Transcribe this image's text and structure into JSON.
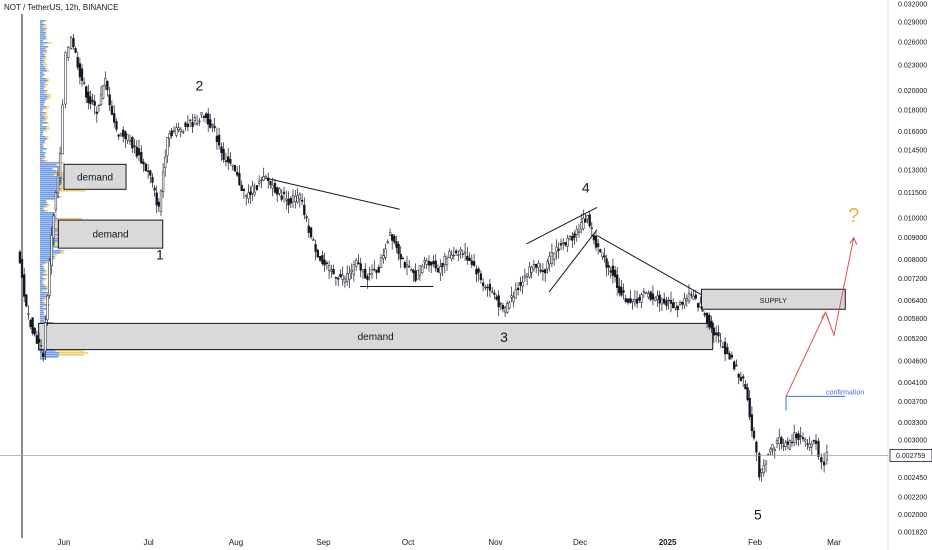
{
  "header": {
    "title": "NOT / TetherUS, 12h, BINANCE"
  },
  "chart_data": {
    "type": "candlestick",
    "symbol": "NOT / TetherUS",
    "interval": "12h",
    "exchange": "BINANCE",
    "y_scale": "log",
    "ylim": [
      0.00182,
      0.032
    ],
    "y_ticks": [
      {
        "v": 0.032,
        "label": "0.032000"
      },
      {
        "v": 0.029,
        "label": "0.029000"
      },
      {
        "v": 0.026,
        "label": "0.026000"
      },
      {
        "v": 0.023,
        "label": "0.023000"
      },
      {
        "v": 0.02,
        "label": "0.020000"
      },
      {
        "v": 0.018,
        "label": "0.018000"
      },
      {
        "v": 0.016,
        "label": "0.016000"
      },
      {
        "v": 0.0145,
        "label": "0.014500"
      },
      {
        "v": 0.013,
        "label": "0.013000"
      },
      {
        "v": 0.0115,
        "label": "0.011500"
      },
      {
        "v": 0.01,
        "label": "0.010000"
      },
      {
        "v": 0.009,
        "label": "0.009000"
      },
      {
        "v": 0.008,
        "label": "0.008000"
      },
      {
        "v": 0.0072,
        "label": "0.007200"
      },
      {
        "v": 0.0064,
        "label": "0.006400"
      },
      {
        "v": 0.0058,
        "label": "0.005800"
      },
      {
        "v": 0.0052,
        "label": "0.005200"
      },
      {
        "v": 0.0046,
        "label": "0.004600"
      },
      {
        "v": 0.0041,
        "label": "0.004100"
      },
      {
        "v": 0.0037,
        "label": "0.003700"
      },
      {
        "v": 0.0033,
        "label": "0.003300"
      },
      {
        "v": 0.003,
        "label": "0.003000"
      },
      {
        "v": 0.00245,
        "label": "0.002450"
      },
      {
        "v": 0.0022,
        "label": "0.002200"
      },
      {
        "v": 0.002,
        "label": "0.002000"
      },
      {
        "v": 0.00182,
        "label": "0.001820"
      }
    ],
    "x_ticks": [
      {
        "label": "Jun",
        "date": "2024-06-01",
        "bold": false
      },
      {
        "label": "Jul",
        "date": "2024-07-01",
        "bold": false
      },
      {
        "label": "Aug",
        "date": "2024-08-01",
        "bold": false
      },
      {
        "label": "Sep",
        "date": "2024-09-01",
        "bold": false
      },
      {
        "label": "Oct",
        "date": "2024-10-01",
        "bold": false
      },
      {
        "label": "Nov",
        "date": "2024-11-01",
        "bold": false
      },
      {
        "label": "Dec",
        "date": "2024-12-01",
        "bold": false
      },
      {
        "label": "2025",
        "date": "2025-01-01",
        "bold": true
      },
      {
        "label": "Feb",
        "date": "2025-02-01",
        "bold": false
      },
      {
        "label": "Mar",
        "date": "2025-03-01",
        "bold": false
      }
    ],
    "current_price": {
      "value": 0.002759,
      "label": "0.002759"
    },
    "price_path": [
      {
        "d": "2024-05-16",
        "p": 0.0085
      },
      {
        "d": "2024-05-19",
        "p": 0.0061
      },
      {
        "d": "2024-05-22",
        "p": 0.0053
      },
      {
        "d": "2024-05-25",
        "p": 0.0048
      },
      {
        "d": "2024-05-28",
        "p": 0.0092
      },
      {
        "d": "2024-05-31",
        "p": 0.014
      },
      {
        "d": "2024-06-02",
        "p": 0.024
      },
      {
        "d": "2024-06-04",
        "p": 0.027
      },
      {
        "d": "2024-06-07",
        "p": 0.022
      },
      {
        "d": "2024-06-10",
        "p": 0.019
      },
      {
        "d": "2024-06-13",
        "p": 0.018
      },
      {
        "d": "2024-06-16",
        "p": 0.021
      },
      {
        "d": "2024-06-20",
        "p": 0.016
      },
      {
        "d": "2024-06-24",
        "p": 0.0155
      },
      {
        "d": "2024-06-28",
        "p": 0.014
      },
      {
        "d": "2024-07-02",
        "p": 0.0125
      },
      {
        "d": "2024-07-05",
        "p": 0.0105
      },
      {
        "d": "2024-07-08",
        "p": 0.0158
      },
      {
        "d": "2024-07-12",
        "p": 0.0162
      },
      {
        "d": "2024-07-17",
        "p": 0.0168
      },
      {
        "d": "2024-07-21",
        "p": 0.0175
      },
      {
        "d": "2024-07-24",
        "p": 0.0165
      },
      {
        "d": "2024-07-28",
        "p": 0.014
      },
      {
        "d": "2024-08-01",
        "p": 0.0128
      },
      {
        "d": "2024-08-05",
        "p": 0.0112
      },
      {
        "d": "2024-08-08",
        "p": 0.0118
      },
      {
        "d": "2024-08-12",
        "p": 0.0124
      },
      {
        "d": "2024-08-16",
        "p": 0.0116
      },
      {
        "d": "2024-08-20",
        "p": 0.011
      },
      {
        "d": "2024-08-24",
        "p": 0.0112
      },
      {
        "d": "2024-08-28",
        "p": 0.009
      },
      {
        "d": "2024-09-01",
        "p": 0.0078
      },
      {
        "d": "2024-09-05",
        "p": 0.0074
      },
      {
        "d": "2024-09-09",
        "p": 0.0072
      },
      {
        "d": "2024-09-13",
        "p": 0.0078
      },
      {
        "d": "2024-09-17",
        "p": 0.0073
      },
      {
        "d": "2024-09-21",
        "p": 0.0076
      },
      {
        "d": "2024-09-25",
        "p": 0.0093
      },
      {
        "d": "2024-09-28",
        "p": 0.0084
      },
      {
        "d": "2024-10-01",
        "p": 0.0076
      },
      {
        "d": "2024-10-04",
        "p": 0.0073
      },
      {
        "d": "2024-10-08",
        "p": 0.008
      },
      {
        "d": "2024-10-12",
        "p": 0.0076
      },
      {
        "d": "2024-10-16",
        "p": 0.0082
      },
      {
        "d": "2024-10-20",
        "p": 0.0084
      },
      {
        "d": "2024-10-24",
        "p": 0.0079
      },
      {
        "d": "2024-10-28",
        "p": 0.007
      },
      {
        "d": "2024-11-01",
        "p": 0.0066
      },
      {
        "d": "2024-11-04",
        "p": 0.006
      },
      {
        "d": "2024-11-07",
        "p": 0.0065
      },
      {
        "d": "2024-11-11",
        "p": 0.0072
      },
      {
        "d": "2024-11-15",
        "p": 0.0078
      },
      {
        "d": "2024-11-19",
        "p": 0.0076
      },
      {
        "d": "2024-11-23",
        "p": 0.0085
      },
      {
        "d": "2024-11-27",
        "p": 0.0088
      },
      {
        "d": "2024-12-01",
        "p": 0.0095
      },
      {
        "d": "2024-12-04",
        "p": 0.0101
      },
      {
        "d": "2024-12-07",
        "p": 0.0086
      },
      {
        "d": "2024-12-10",
        "p": 0.008
      },
      {
        "d": "2024-12-13",
        "p": 0.0074
      },
      {
        "d": "2024-12-16",
        "p": 0.0066
      },
      {
        "d": "2024-12-20",
        "p": 0.0063
      },
      {
        "d": "2024-12-24",
        "p": 0.0066
      },
      {
        "d": "2024-12-28",
        "p": 0.0065
      },
      {
        "d": "2025-01-01",
        "p": 0.0063
      },
      {
        "d": "2025-01-05",
        "p": 0.0062
      },
      {
        "d": "2025-01-09",
        "p": 0.0066
      },
      {
        "d": "2025-01-13",
        "p": 0.0062
      },
      {
        "d": "2025-01-17",
        "p": 0.0055
      },
      {
        "d": "2025-01-21",
        "p": 0.005
      },
      {
        "d": "2025-01-25",
        "p": 0.0045
      },
      {
        "d": "2025-01-29",
        "p": 0.004
      },
      {
        "d": "2025-02-01",
        "p": 0.003
      },
      {
        "d": "2025-02-03",
        "p": 0.0025
      },
      {
        "d": "2025-02-06",
        "p": 0.0028
      },
      {
        "d": "2025-02-10",
        "p": 0.003
      },
      {
        "d": "2025-02-13",
        "p": 0.0029
      },
      {
        "d": "2025-02-16",
        "p": 0.0031
      },
      {
        "d": "2025-02-20",
        "p": 0.0029
      },
      {
        "d": "2025-02-23",
        "p": 0.003
      },
      {
        "d": "2025-02-25",
        "p": 0.0026
      },
      {
        "d": "2025-02-27",
        "p": 0.002759
      }
    ],
    "zones": [
      {
        "label": "demand",
        "from": "2024-06-01",
        "to": "2024-06-23",
        "top": 0.0134,
        "bottom": 0.0117,
        "fill": "#d9d9d9"
      },
      {
        "label": "demand",
        "from": "2024-05-30",
        "to": "2024-07-06",
        "top": 0.0099,
        "bottom": 0.0085,
        "fill": "#d9d9d9"
      },
      {
        "label": "demand",
        "from": "2024-05-23",
        "to": "2025-01-17",
        "top": 0.00565,
        "bottom": 0.0049,
        "fill": "#d9d9d9"
      },
      {
        "label": "SUPPLY",
        "from": "2025-01-13",
        "to": "2025-03-05",
        "top": 0.0068,
        "bottom": 0.0061,
        "fill": "#d9d9d9"
      }
    ],
    "wave_labels": [
      {
        "label": "1",
        "d": "2024-07-05",
        "p": 0.008
      },
      {
        "label": "2",
        "d": "2024-07-19",
        "p": 0.02
      },
      {
        "label": "3",
        "d": "2024-11-04",
        "p": 0.0051
      },
      {
        "label": "4",
        "d": "2024-12-03",
        "p": 0.0115
      },
      {
        "label": "5",
        "d": "2025-02-02",
        "p": 0.00195
      }
    ],
    "confirmation": {
      "label": "confirmation",
      "from": "2025-02-12",
      "to": "2025-03-05",
      "p": 0.0038
    },
    "projection": [
      {
        "d": "2025-02-12",
        "p": 0.0038
      },
      {
        "d": "2025-02-26",
        "p": 0.006
      },
      {
        "d": "2025-03-01",
        "p": 0.0053
      },
      {
        "d": "2025-03-08",
        "p": 0.009
      }
    ],
    "question_mark": {
      "label": "?",
      "d": "2025-03-08",
      "p": 0.0098
    },
    "colors": {
      "candle_up": "#131722",
      "candle_down": "#131722",
      "zone": "#d9d9d9",
      "projection": "#e05050",
      "confirmation": "#3d6fd8",
      "question": "#f0b040",
      "profile_blue": "#3d78e0",
      "profile_yellow": "#f2c14e"
    }
  }
}
